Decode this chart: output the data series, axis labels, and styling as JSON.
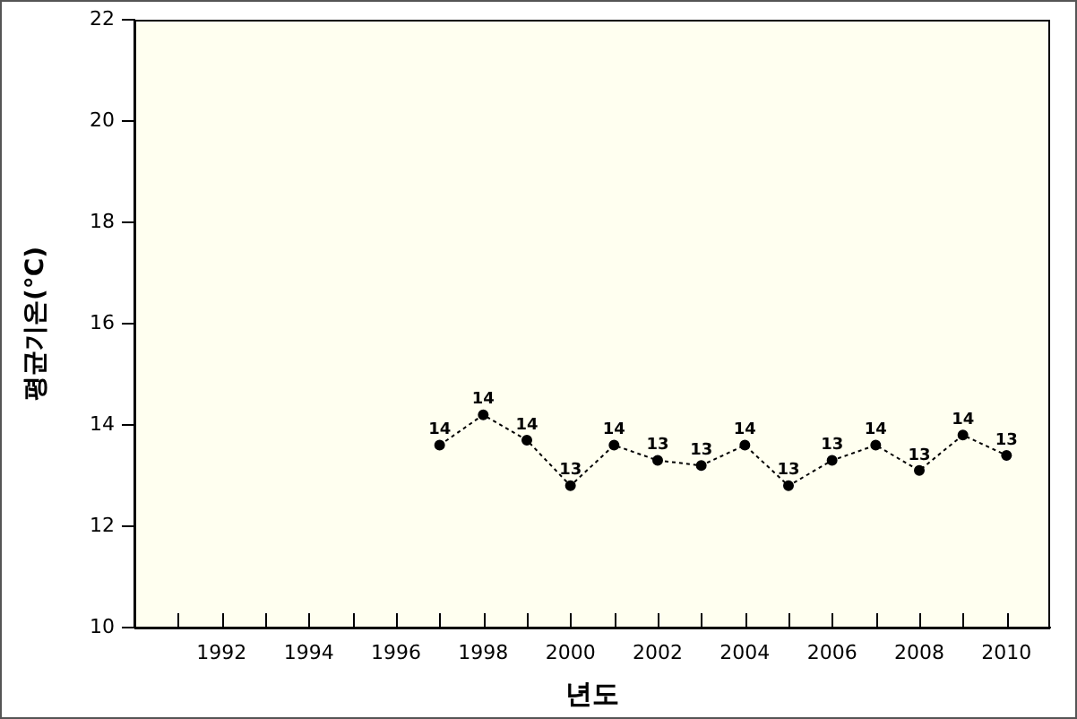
{
  "chart_data": {
    "type": "line",
    "xlabel": "년도",
    "ylabel": "평균기온(°C)",
    "x": [
      1997,
      1998,
      1999,
      2000,
      2001,
      2002,
      2003,
      2004,
      2005,
      2006,
      2007,
      2008,
      2009,
      2010
    ],
    "series": [
      {
        "color": "#000000",
        "values": [
          13.6,
          14.2,
          13.7,
          12.8,
          13.6,
          13.3,
          13.2,
          13.6,
          12.8,
          13.3,
          13.6,
          13.1,
          13.8,
          13.4
        ],
        "value_labels": [
          "14",
          "14",
          "14",
          "13",
          "14",
          "13",
          "13",
          "14",
          "13",
          "13",
          "14",
          "13",
          "14",
          "13"
        ]
      }
    ],
    "xlim": [
      1990,
      2011
    ],
    "xticks": [
      {
        "value": 1991,
        "label": null
      },
      1992,
      {
        "value": 1993,
        "label": null
      },
      1994,
      {
        "value": 1995,
        "label": null
      },
      1996,
      {
        "value": 1997,
        "label": null
      },
      1998,
      {
        "value": 1999,
        "label": null
      },
      2000,
      {
        "value": 2001,
        "label": null
      },
      2002,
      {
        "value": 2003,
        "label": null
      },
      2004,
      {
        "value": 2005,
        "label": null
      },
      2006,
      {
        "value": 2007,
        "label": null
      },
      2008,
      {
        "value": 2009,
        "label": null
      },
      2010
    ],
    "ylim": [
      10,
      22
    ],
    "yticks": [
      10,
      12,
      14,
      16,
      18,
      20,
      22
    ],
    "marker": "circle",
    "line_style": "dotted"
  }
}
